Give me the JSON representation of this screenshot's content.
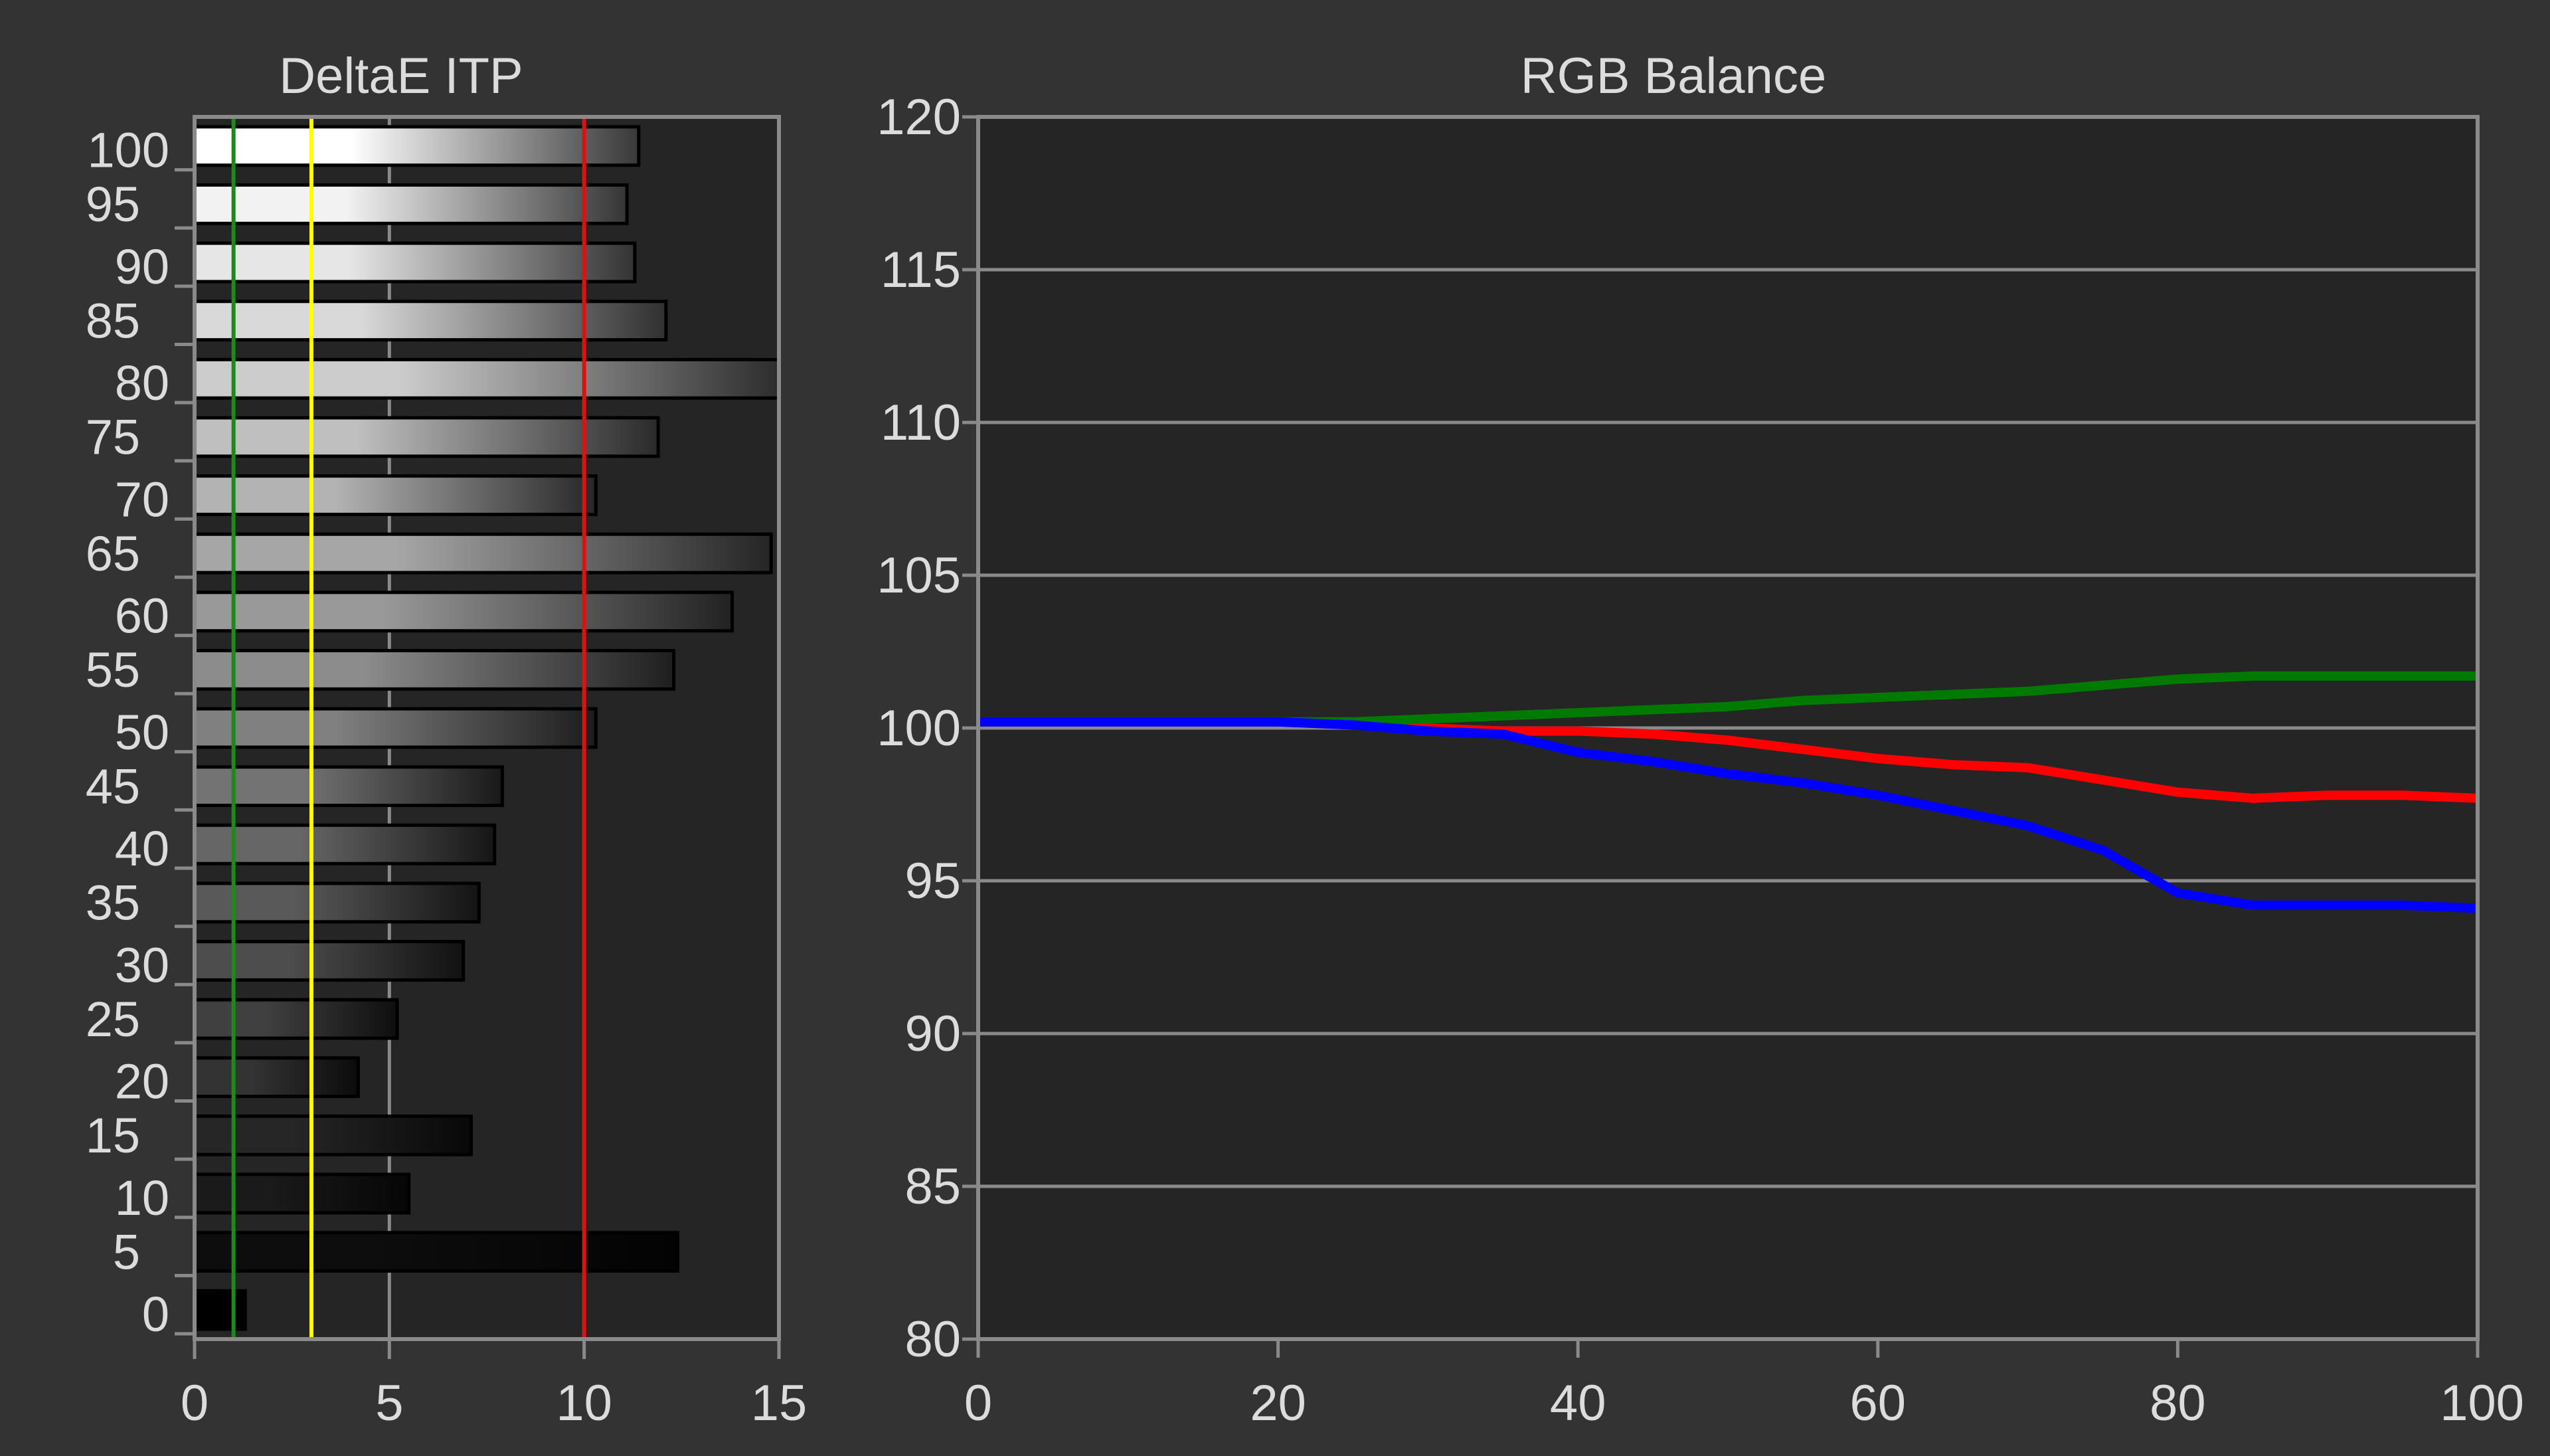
{
  "colors": {
    "background": "#333333",
    "plot_background": "#252525",
    "frame": "#8a8a8a",
    "grid": "#8a8a8a",
    "text": "#dcdcdc",
    "threshold_green": "#1a8a1a",
    "threshold_yellow": "#ffff00",
    "threshold_red": "#e01010",
    "series_red": "#ff0000",
    "series_green": "#007a00",
    "series_blue": "#0000ff"
  },
  "chart_data": [
    {
      "type": "bar",
      "orientation": "horizontal",
      "title": "DeltaE ITP",
      "xlabel": "",
      "ylabel": "",
      "xlim": [
        0,
        15
      ],
      "ylim": [
        0,
        100
      ],
      "x_ticks": [
        0,
        5,
        10,
        15
      ],
      "y_ticks": [
        0,
        5,
        10,
        15,
        20,
        25,
        30,
        35,
        40,
        45,
        50,
        55,
        60,
        65,
        70,
        75,
        80,
        85,
        90,
        95,
        100
      ],
      "grid": "vertical",
      "legend": "none",
      "categories": [
        0,
        5,
        10,
        15,
        20,
        25,
        30,
        35,
        40,
        45,
        50,
        55,
        60,
        65,
        70,
        75,
        80,
        85,
        90,
        95,
        100
      ],
      "values": [
        1.3,
        12.4,
        5.5,
        7.1,
        4.2,
        5.2,
        6.9,
        7.3,
        7.7,
        7.9,
        10.3,
        12.3,
        13.8,
        14.8,
        10.3,
        11.9,
        15.0,
        12.1,
        11.3,
        11.1,
        11.4
      ],
      "thresholds": [
        {
          "value": 1,
          "color": "#1a8a1a"
        },
        {
          "value": 3,
          "color": "#ffff00"
        },
        {
          "value": 10,
          "color": "#e01010"
        }
      ]
    },
    {
      "type": "line",
      "title": "RGB Balance",
      "xlabel": "",
      "ylabel": "",
      "xlim": [
        0,
        100
      ],
      "ylim": [
        80,
        120
      ],
      "x_ticks": [
        0,
        20,
        40,
        60,
        80,
        100
      ],
      "y_ticks": [
        80,
        85,
        90,
        95,
        100,
        105,
        110,
        115,
        120
      ],
      "grid": "horizontal",
      "legend": "none",
      "x": [
        0,
        5,
        10,
        15,
        20,
        25,
        30,
        35,
        40,
        45,
        50,
        55,
        60,
        65,
        70,
        75,
        80,
        85,
        90,
        95,
        100
      ],
      "series": [
        {
          "color": "#ff0000",
          "values": [
            100.2,
            100.2,
            100.2,
            100.2,
            100.2,
            100.1,
            100.0,
            99.9,
            99.9,
            99.8,
            99.6,
            99.3,
            99.0,
            98.8,
            98.7,
            98.3,
            97.9,
            97.7,
            97.8,
            97.8,
            97.7
          ]
        },
        {
          "color": "#007a00",
          "values": [
            100.2,
            100.2,
            100.2,
            100.2,
            100.2,
            100.2,
            100.3,
            100.4,
            100.5,
            100.6,
            100.7,
            100.9,
            101.0,
            101.1,
            101.2,
            101.4,
            101.6,
            101.7,
            101.7,
            101.7,
            101.7
          ]
        },
        {
          "color": "#0000ff",
          "values": [
            100.2,
            100.2,
            100.2,
            100.2,
            100.2,
            100.1,
            99.9,
            99.8,
            99.2,
            98.9,
            98.5,
            98.2,
            97.8,
            97.3,
            96.8,
            96.0,
            94.6,
            94.2,
            94.2,
            94.2,
            94.1
          ]
        }
      ]
    }
  ]
}
